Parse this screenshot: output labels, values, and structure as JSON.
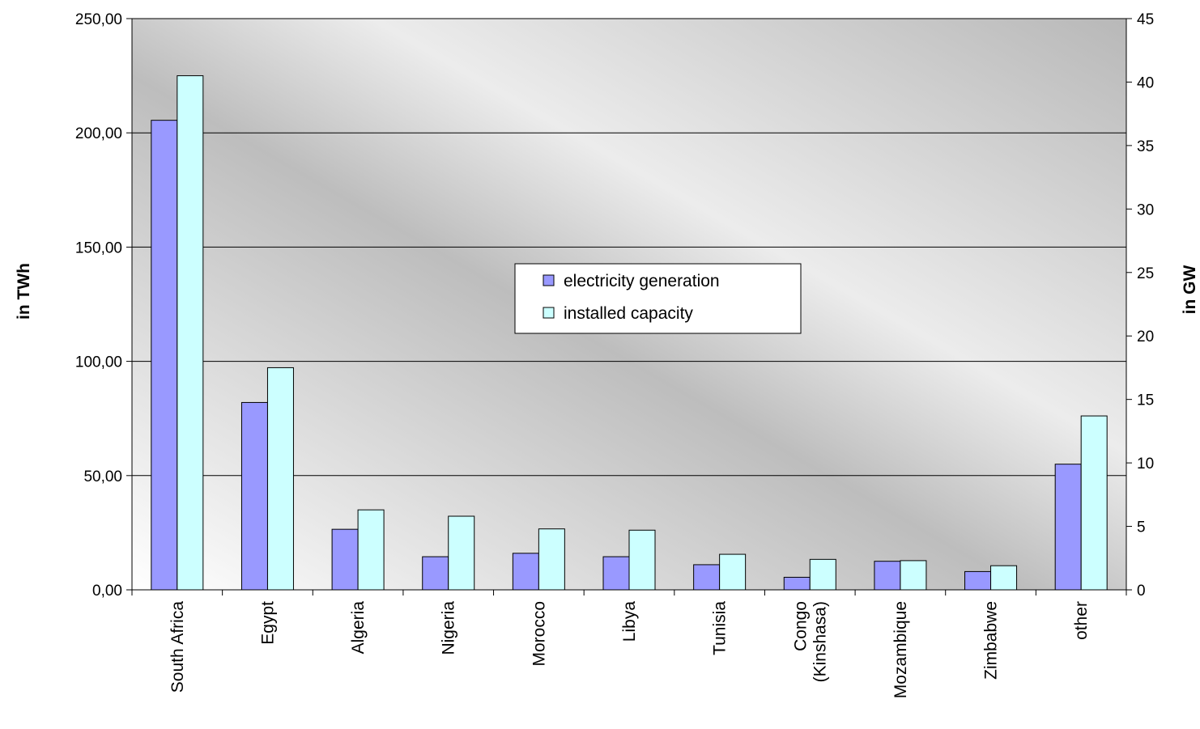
{
  "chart_data": {
    "type": "bar",
    "categories": [
      "South Africa",
      "Egypt",
      "Algeria",
      "Nigeria",
      "Morocco",
      "Libya",
      "Tunisia",
      "Congo\n(Kinshasa)",
      "Mozambique",
      "Zimbabwe",
      "other"
    ],
    "series": [
      {
        "name": "electricity generation",
        "axis": "left",
        "color": "#9999ff",
        "values": [
          205.5,
          82.0,
          26.5,
          14.5,
          16.0,
          14.5,
          11.0,
          5.5,
          12.5,
          8.0,
          55.0
        ]
      },
      {
        "name": "installed capacity",
        "axis": "right",
        "color": "#ccffff",
        "values": [
          40.5,
          17.5,
          6.3,
          5.8,
          4.8,
          4.7,
          2.8,
          2.4,
          2.3,
          1.9,
          13.7
        ]
      }
    ],
    "ylabel": "in TWh",
    "y2label": "in GW",
    "ylim": [
      0,
      250
    ],
    "y2lim": [
      0,
      45
    ],
    "yticks": [
      "0,00",
      "50,00",
      "100,00",
      "150,00",
      "200,00",
      "250,00"
    ],
    "y2ticks": [
      "0",
      "5",
      "10",
      "15",
      "20",
      "25",
      "30",
      "35",
      "40",
      "45"
    ],
    "grid": true,
    "legend_position": "center"
  }
}
